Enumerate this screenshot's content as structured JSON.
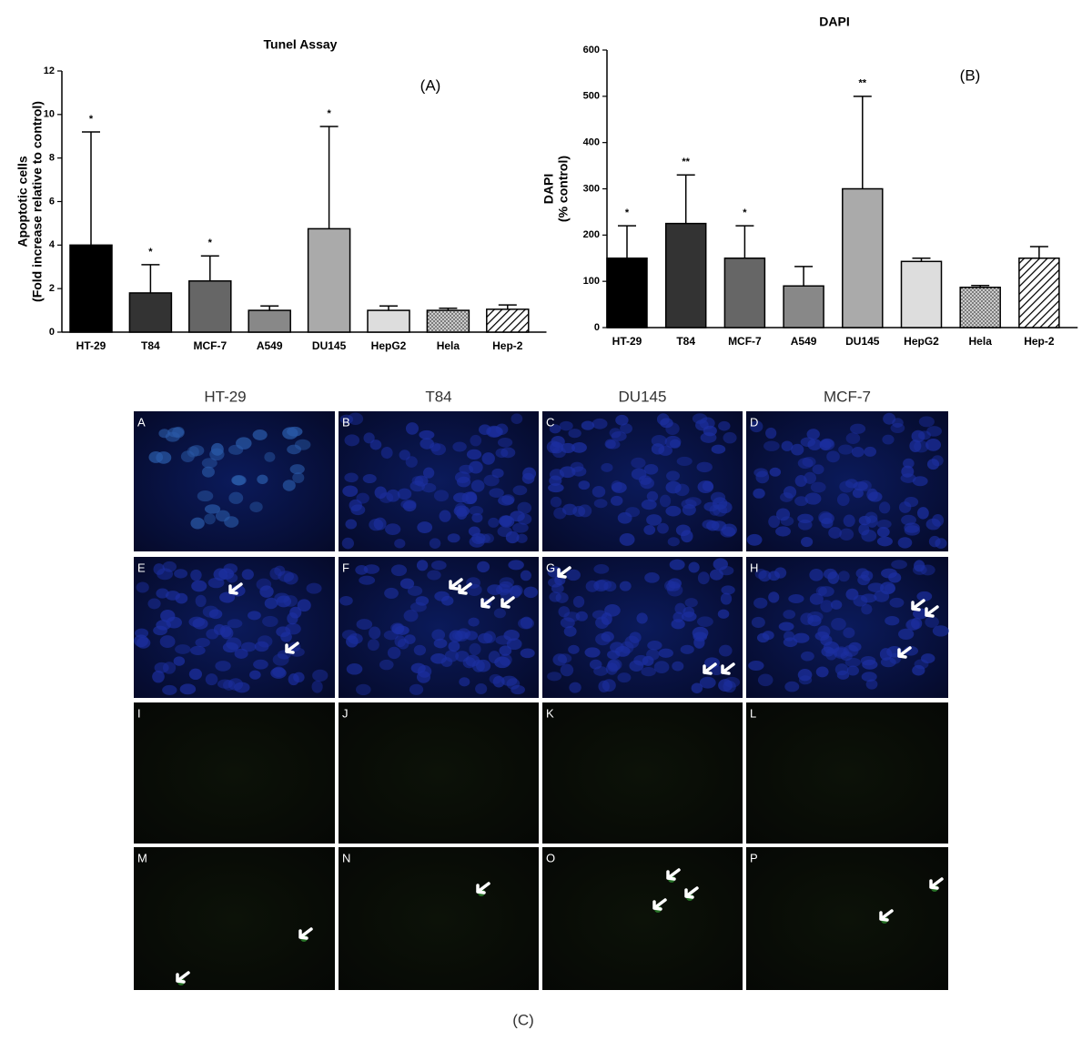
{
  "chart_data": [
    {
      "type": "bar",
      "title": "Tunel Assay",
      "panel_label": "(A)",
      "y_label": [
        "Apoptotic cells",
        "(Fold increase relative to control)"
      ],
      "categories": [
        "HT-29",
        "T84",
        "MCF-7",
        "A549",
        "DU145",
        "HepG2",
        "Hela",
        "Hep-2"
      ],
      "values": [
        4.0,
        1.8,
        2.35,
        1.0,
        4.75,
        1.0,
        1.0,
        1.05
      ],
      "errors": [
        5.2,
        1.3,
        1.15,
        0.2,
        4.7,
        0.2,
        0.1,
        0.2
      ],
      "value_annotations": [
        "*",
        "*",
        "*",
        null,
        "*",
        null,
        null,
        null
      ],
      "fills": [
        "#000000",
        "#333333",
        "#666666",
        "#888888",
        "#aaaaaa",
        "#dddddd",
        "dots",
        "hatch"
      ],
      "ylim": [
        0,
        12
      ],
      "yticks": [
        0,
        2,
        4,
        6,
        8,
        10,
        12
      ]
    },
    {
      "type": "bar",
      "title": "DAPI",
      "panel_label": "(B)",
      "y_label": [
        "DAPI",
        "(% control)"
      ],
      "categories": [
        "HT-29",
        "T84",
        "MCF-7",
        "A549",
        "DU145",
        "HepG2",
        "Hela",
        "Hep-2"
      ],
      "values": [
        150,
        225,
        150,
        90,
        300,
        143,
        87,
        150
      ],
      "errors": [
        70,
        105,
        70,
        42,
        200,
        7,
        4,
        25
      ],
      "value_annotations": [
        "*",
        "**",
        "*",
        null,
        "**",
        null,
        null,
        null
      ],
      "fills": [
        "#000000",
        "#333333",
        "#666666",
        "#888888",
        "#aaaaaa",
        "#dddddd",
        "dots",
        "hatch"
      ],
      "ylim": [
        0,
        600
      ],
      "yticks": [
        0,
        100,
        200,
        300,
        400,
        500,
        600
      ]
    }
  ],
  "micrographs": {
    "columns": [
      "HT-29",
      "T84",
      "DU145",
      "MCF-7"
    ],
    "panels": [
      "A",
      "B",
      "C",
      "D",
      "E",
      "F",
      "G",
      "H",
      "I",
      "J",
      "K",
      "L",
      "M",
      "N",
      "O",
      "P"
    ],
    "caption": "(C)"
  }
}
